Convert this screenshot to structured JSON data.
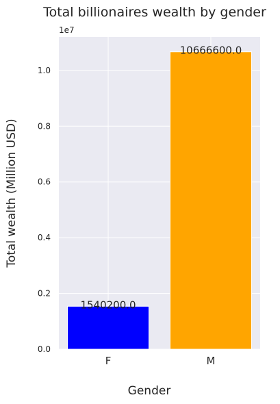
{
  "chart_data": {
    "type": "bar",
    "title": "Total billionaires wealth by gender",
    "xlabel": "Gender",
    "ylabel": "Total wealth (Million USD)",
    "categories": [
      "F",
      "M"
    ],
    "values": [
      1540200.0,
      10666600.0
    ],
    "value_labels": [
      "1540200.0",
      "10666600.0"
    ],
    "bar_colors": [
      "#0000ff",
      "#ffa500"
    ],
    "ylim": [
      0,
      11200000
    ],
    "yticks": [
      0,
      2000000,
      4000000,
      6000000,
      8000000,
      10000000
    ],
    "ytick_labels": [
      "0.0",
      "0.2",
      "0.4",
      "0.6",
      "0.8",
      "1.0"
    ],
    "y_offset_label": "1e7",
    "grid": true,
    "background_color": "#eaeaf2",
    "grid_color": "#ffffff"
  }
}
